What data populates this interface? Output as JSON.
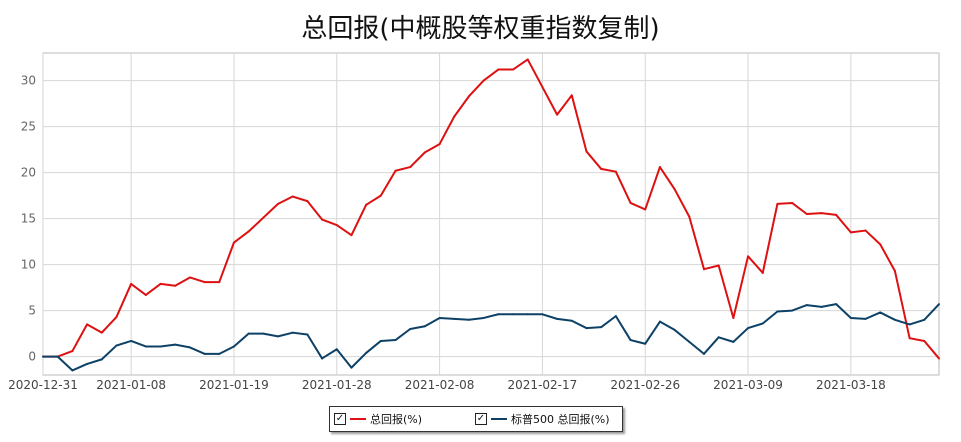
{
  "chart_data": {
    "type": "line",
    "title": "总回报(中概股等权重指数复制)",
    "x_tick_labels": [
      "2020-12-31",
      "2021-01-08",
      "2021-01-19",
      "2021-01-28",
      "2021-02-08",
      "2021-02-17",
      "2021-02-26",
      "2021-03-09",
      "2021-03-18"
    ],
    "x_tick_index": [
      0,
      6,
      13,
      20,
      27,
      34,
      41,
      48,
      55
    ],
    "ylim": [
      -2,
      33
    ],
    "yticks": [
      0,
      5,
      10,
      15,
      20,
      25,
      30
    ],
    "grid": true,
    "legend_placement": "bottom-center",
    "series": [
      {
        "name": "总回报(%)",
        "color": "#dd1111",
        "values": [
          0,
          0,
          0.6,
          3.5,
          2.6,
          4.3,
          7.9,
          6.7,
          7.9,
          7.7,
          8.6,
          8.1,
          8.1,
          12.4,
          13.6,
          15.1,
          16.6,
          17.4,
          16.9,
          14.9,
          14.3,
          13.2,
          16.5,
          17.5,
          20.2,
          20.6,
          22.2,
          23.1,
          26.1,
          28.3,
          30.0,
          31.2,
          31.2,
          32.3,
          29.3,
          26.3,
          28.4,
          22.3,
          20.4,
          20.1,
          16.7,
          16.0,
          20.6,
          18.2,
          15.2,
          9.5,
          9.9,
          4.2,
          10.9,
          9.1,
          16.6,
          16.7,
          15.5,
          15.6,
          15.4,
          13.5,
          13.7,
          12.2,
          9.3,
          2.0,
          1.7,
          -0.2
        ]
      },
      {
        "name": "标普500 总回报(%)",
        "color": "#0d4166",
        "values": [
          0,
          0,
          -1.5,
          -0.8,
          -0.3,
          1.2,
          1.7,
          1.1,
          1.1,
          1.3,
          1.0,
          0.3,
          0.3,
          1.1,
          2.5,
          2.5,
          2.2,
          2.6,
          2.4,
          -0.2,
          0.8,
          -1.2,
          0.4,
          1.7,
          1.8,
          3.0,
          3.3,
          4.2,
          4.1,
          4.0,
          4.2,
          4.6,
          4.6,
          4.6,
          4.6,
          4.1,
          3.9,
          3.1,
          3.2,
          4.4,
          1.8,
          1.4,
          3.8,
          2.9,
          1.6,
          0.3,
          2.1,
          1.6,
          3.1,
          3.6,
          4.9,
          5.0,
          5.6,
          5.4,
          5.7,
          4.2,
          4.1,
          4.8,
          4.0,
          3.5,
          4.0,
          5.7
        ]
      }
    ]
  },
  "legend": {
    "check_glyph": "✓",
    "items": [
      {
        "label": "总回报(%)",
        "color": "#dd1111"
      },
      {
        "label": "标普500 总回报(%)",
        "color": "#0d4166"
      }
    ]
  }
}
